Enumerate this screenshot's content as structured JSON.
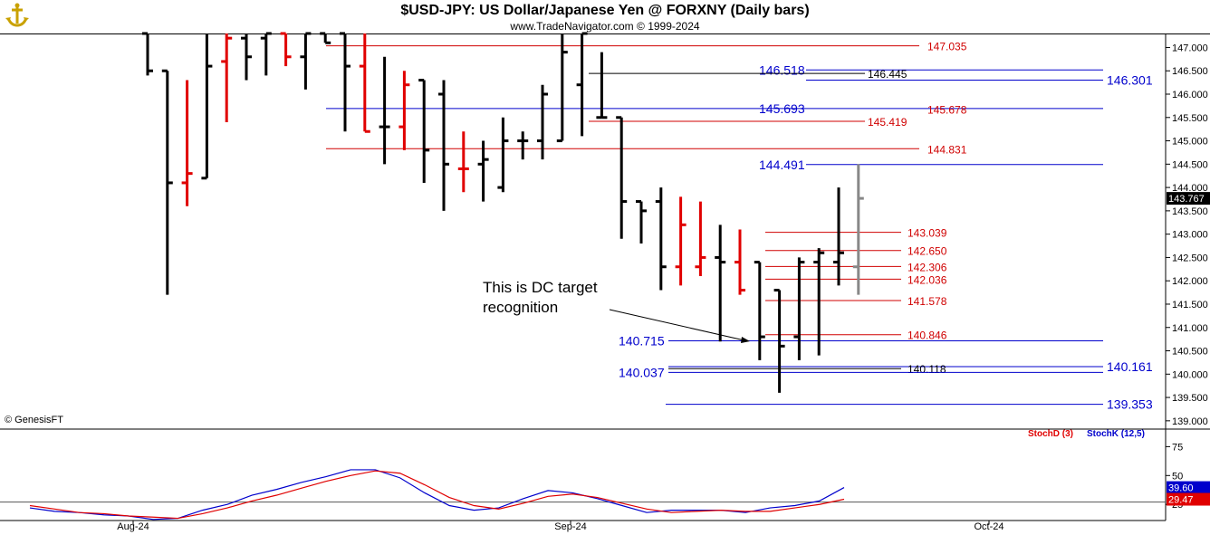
{
  "header": {
    "title": "$USD-JPY:  US Dollar/Japanese Yen @ FORXNY  (Daily bars)",
    "subtitle": "www.TradeNavigator.com © 1999-2024",
    "copyright": "© GenesisFT",
    "logo_icon": "anchor-logo-icon"
  },
  "annotation": {
    "line1": "This is DC target",
    "line2": "recognition"
  },
  "last_price": "143.767",
  "colors": {
    "up": "#000000",
    "down": "#e00000",
    "current": "#888888",
    "red_level": "#d00000",
    "blue_level": "#0000cc",
    "stoch_k": "#0000cc",
    "stoch_d": "#e00000"
  },
  "chart_data": [
    {
      "type": "ohlc",
      "title": "$USD-JPY:  US Dollar/Japanese Yen @ FORXNY  (Daily bars)",
      "x_ticks": [
        "Aug-24",
        "Sep-24",
        "Oct-24"
      ],
      "y_ticks": [
        "139.000",
        "139.500",
        "140.000",
        "140.500",
        "141.000",
        "141.500",
        "142.000",
        "142.500",
        "143.000",
        "143.500",
        "144.000",
        "144.500",
        "145.000",
        "145.500",
        "146.000",
        "146.500",
        "147.000"
      ],
      "ylim": [
        138.9,
        147.3
      ],
      "bars": [
        {
          "date": "2024-07-31",
          "o": 147.3,
          "h": 147.3,
          "l": 146.4,
          "c": 146.5,
          "dir": "up"
        },
        {
          "date": "2024-08-01",
          "o": 146.5,
          "h": 146.5,
          "l": 141.7,
          "c": 144.1,
          "dir": "up"
        },
        {
          "date": "2024-08-02",
          "o": 144.1,
          "h": 146.3,
          "l": 143.6,
          "c": 144.3,
          "dir": "down"
        },
        {
          "date": "2024-08-05",
          "o": 144.2,
          "h": 147.3,
          "l": 144.2,
          "c": 146.6,
          "dir": "up"
        },
        {
          "date": "2024-08-06",
          "o": 146.7,
          "h": 147.3,
          "l": 145.4,
          "c": 147.2,
          "dir": "down"
        },
        {
          "date": "2024-08-07",
          "o": 147.2,
          "h": 147.3,
          "l": 146.3,
          "c": 146.8,
          "dir": "up"
        },
        {
          "date": "2024-08-08",
          "o": 147.2,
          "h": 147.3,
          "l": 146.4,
          "c": 147.3,
          "dir": "up"
        },
        {
          "date": "2024-08-09",
          "o": 147.3,
          "h": 147.3,
          "l": 146.6,
          "c": 146.8,
          "dir": "down"
        },
        {
          "date": "2024-08-12",
          "o": 146.8,
          "h": 147.3,
          "l": 146.1,
          "c": 147.3,
          "dir": "up"
        },
        {
          "date": "2024-08-13",
          "o": 147.3,
          "h": 147.3,
          "l": 147.1,
          "c": 147.1,
          "dir": "up"
        },
        {
          "date": "2024-08-14",
          "o": 147.3,
          "h": 147.3,
          "l": 145.2,
          "c": 146.6,
          "dir": "up"
        },
        {
          "date": "2024-08-15",
          "o": 146.6,
          "h": 147.3,
          "l": 145.2,
          "c": 145.2,
          "dir": "down"
        },
        {
          "date": "2024-08-16",
          "o": 145.3,
          "h": 146.8,
          "l": 144.5,
          "c": 145.3,
          "dir": "up"
        },
        {
          "date": "2024-08-19",
          "o": 145.3,
          "h": 146.5,
          "l": 144.8,
          "c": 146.2,
          "dir": "down"
        },
        {
          "date": "2024-08-20",
          "o": 146.3,
          "h": 146.3,
          "l": 144.1,
          "c": 144.8,
          "dir": "up"
        },
        {
          "date": "2024-08-21",
          "o": 146.0,
          "h": 146.3,
          "l": 143.5,
          "c": 144.5,
          "dir": "up"
        },
        {
          "date": "2024-08-22",
          "o": 144.4,
          "h": 145.2,
          "l": 143.9,
          "c": 144.4,
          "dir": "down"
        },
        {
          "date": "2024-08-23",
          "o": 144.5,
          "h": 145.0,
          "l": 143.7,
          "c": 144.6,
          "dir": "up"
        },
        {
          "date": "2024-08-26",
          "o": 144.0,
          "h": 145.5,
          "l": 143.9,
          "c": 145.0,
          "dir": "up"
        },
        {
          "date": "2024-08-27",
          "o": 145.0,
          "h": 145.2,
          "l": 144.6,
          "c": 145.0,
          "dir": "up"
        },
        {
          "date": "2024-08-28",
          "o": 145.0,
          "h": 146.2,
          "l": 144.6,
          "c": 146.0,
          "dir": "up"
        },
        {
          "date": "2024-08-29",
          "o": 145.0,
          "h": 147.3,
          "l": 145.0,
          "c": 146.9,
          "dir": "up"
        },
        {
          "date": "2024-08-30",
          "o": 146.2,
          "h": 147.3,
          "l": 145.1,
          "c": 147.3,
          "dir": "up"
        },
        {
          "date": "2024-09-02",
          "o": 145.5,
          "h": 146.9,
          "l": 145.5,
          "c": 145.5,
          "dir": "up"
        },
        {
          "date": "2024-09-03",
          "o": 145.5,
          "h": 145.5,
          "l": 142.9,
          "c": 143.7,
          "dir": "up"
        },
        {
          "date": "2024-09-04",
          "o": 143.7,
          "h": 143.7,
          "l": 142.8,
          "c": 143.5,
          "dir": "up"
        },
        {
          "date": "2024-09-05",
          "o": 143.7,
          "h": 144.0,
          "l": 141.8,
          "c": 142.3,
          "dir": "up"
        },
        {
          "date": "2024-09-06",
          "o": 142.3,
          "h": 143.8,
          "l": 141.9,
          "c": 143.2,
          "dir": "down"
        },
        {
          "date": "2024-09-09",
          "o": 142.3,
          "h": 143.7,
          "l": 142.1,
          "c": 142.5,
          "dir": "down"
        },
        {
          "date": "2024-09-10",
          "o": 142.5,
          "h": 143.2,
          "l": 140.7,
          "c": 142.4,
          "dir": "up"
        },
        {
          "date": "2024-09-11",
          "o": 142.4,
          "h": 143.1,
          "l": 141.7,
          "c": 141.8,
          "dir": "down"
        },
        {
          "date": "2024-09-12",
          "o": 142.4,
          "h": 142.4,
          "l": 140.3,
          "c": 140.8,
          "dir": "up"
        },
        {
          "date": "2024-09-13",
          "o": 141.8,
          "h": 141.8,
          "l": 139.6,
          "c": 140.6,
          "dir": "up"
        },
        {
          "date": "2024-09-16",
          "o": 140.8,
          "h": 142.5,
          "l": 140.3,
          "c": 142.4,
          "dir": "up"
        },
        {
          "date": "2024-09-17",
          "o": 142.4,
          "h": 142.7,
          "l": 140.4,
          "c": 142.6,
          "dir": "up"
        },
        {
          "date": "2024-09-18",
          "o": 142.4,
          "h": 144.0,
          "l": 141.9,
          "c": 142.6,
          "dir": "up"
        },
        {
          "date": "2024-09-19",
          "o": 142.3,
          "h": 144.5,
          "l": 141.7,
          "c": 143.767,
          "dir": "current"
        }
      ],
      "levels": [
        {
          "value": 147.035,
          "label": "147.035",
          "color": "red"
        },
        {
          "value": 146.518,
          "label": "146.518",
          "color": "blue"
        },
        {
          "value": 146.445,
          "label": "146.445",
          "color": "black"
        },
        {
          "value": 146.301,
          "label": "146.301",
          "color": "blue"
        },
        {
          "value": 145.693,
          "label": "145.693",
          "color": "blue"
        },
        {
          "value": 145.678,
          "label": "145.678",
          "color": "red"
        },
        {
          "value": 145.419,
          "label": "145.419",
          "color": "red"
        },
        {
          "value": 144.831,
          "label": "144.831",
          "color": "red"
        },
        {
          "value": 144.491,
          "label": "144.491",
          "color": "blue"
        },
        {
          "value": 143.039,
          "label": "143.039",
          "color": "red"
        },
        {
          "value": 142.65,
          "label": "142.650",
          "color": "red"
        },
        {
          "value": 142.306,
          "label": "142.306",
          "color": "red"
        },
        {
          "value": 142.036,
          "label": "142.036",
          "color": "red"
        },
        {
          "value": 141.578,
          "label": "141.578",
          "color": "red"
        },
        {
          "value": 140.846,
          "label": "140.846",
          "color": "red"
        },
        {
          "value": 140.715,
          "label": "140.715",
          "color": "blue"
        },
        {
          "value": 140.161,
          "label": "140.161",
          "color": "blue"
        },
        {
          "value": 140.118,
          "label": "140.118",
          "color": "black"
        },
        {
          "value": 140.037,
          "label": "140.037",
          "color": "blue"
        },
        {
          "value": 139.353,
          "label": "139.353",
          "color": "blue"
        }
      ]
    },
    {
      "type": "line",
      "legend": [
        "StochD (3)",
        "StochK (12,5)"
      ],
      "y_ticks": [
        "25",
        "50",
        "75"
      ],
      "ylim": [
        15,
        80
      ],
      "hline": 27,
      "series": [
        {
          "name": "StochK (12,5)",
          "color": "blue",
          "last_label": "39.60",
          "values": [
            22,
            19,
            18,
            16,
            15,
            12,
            13,
            20,
            25,
            33,
            38,
            44,
            49,
            55,
            55,
            48,
            35,
            24,
            20,
            22,
            30,
            37,
            35,
            30,
            24,
            18,
            20,
            20,
            20,
            18,
            22,
            24,
            28,
            39.6
          ]
        },
        {
          "name": "StochD (3)",
          "color": "red",
          "last_label": "29.47",
          "values": [
            24,
            21,
            18,
            17,
            15,
            14,
            13,
            17,
            22,
            28,
            33,
            39,
            45,
            50,
            54,
            52,
            42,
            31,
            24,
            21,
            26,
            32,
            34,
            31,
            26,
            21,
            18,
            19,
            20,
            19,
            19,
            22,
            25,
            29.47
          ]
        }
      ]
    }
  ]
}
